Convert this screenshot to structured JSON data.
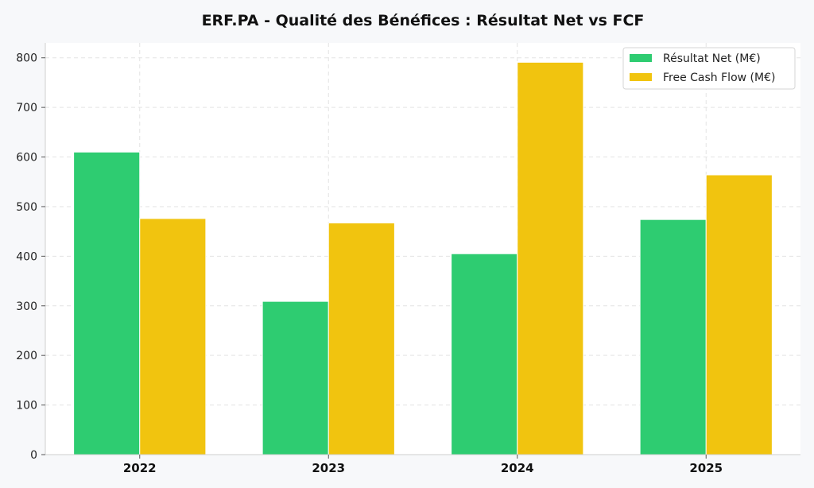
{
  "chart_data": {
    "type": "bar",
    "title": "ERF.PA - Qualité des Bénéfices : Résultat Net vs FCF",
    "xlabel": "",
    "ylabel": "",
    "categories": [
      "2022",
      "2023",
      "2024",
      "2025"
    ],
    "series": [
      {
        "name": "Résultat Net (M€)",
        "values": [
          610,
          309,
          405,
          474
        ],
        "color": "#2ecc71"
      },
      {
        "name": "Free Cash Flow (M€)",
        "values": [
          476,
          467,
          791,
          564
        ],
        "color": "#f1c40f"
      }
    ],
    "ylim": [
      0,
      830
    ],
    "yticks": [
      "0",
      "100",
      "200",
      "300",
      "400",
      "500",
      "600",
      "700",
      "800"
    ],
    "grid": true,
    "legend_position": "top-right"
  }
}
